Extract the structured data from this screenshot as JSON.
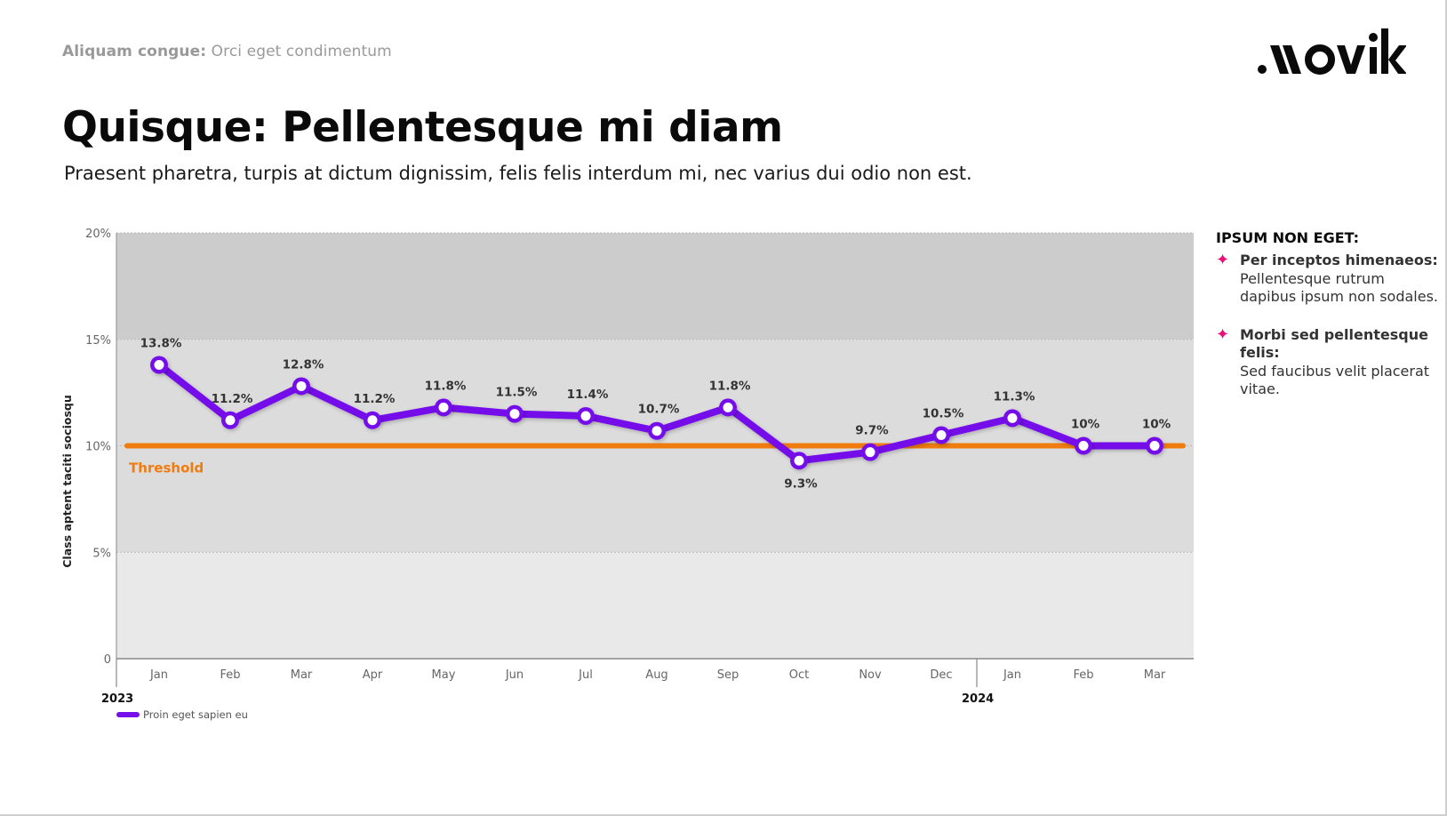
{
  "header": {
    "eyebrow_bold": "Aliquam congue:",
    "eyebrow_rest": " Orci eget condimentum",
    "brand": "movik",
    "title": "Quisque: Pellentesque mi diam",
    "subtitle": "Praesent pharetra, turpis at dictum dignissim, felis felis interdum mi, nec varius dui odio non est."
  },
  "sidebar": {
    "title": "IPSUM NON EGET:",
    "bullet_icon": "four-point-star-icon",
    "items": [
      {
        "bold": "Per inceptos himenaeos:",
        "text": "Pellentesque rutrum dapibus ipsum non sodales."
      },
      {
        "bold": "Morbi sed pellentesque felis:",
        "text": "Sed faucibus velit placerat vitae."
      }
    ]
  },
  "colors": {
    "series": "#7510ea",
    "threshold": "#f07c10",
    "bullet": "#e8107a",
    "band_high": "#cccccc",
    "band_mid": "#dcdcdc",
    "band_low": "#e9e9e9"
  },
  "chart_data": {
    "type": "line",
    "title": "",
    "ylabel": "Class aptent taciti sociosqu",
    "xlabel": "",
    "ylim": [
      0,
      20
    ],
    "yticks": [
      0,
      5,
      10,
      15,
      20
    ],
    "ytick_labels": [
      "0",
      "5%",
      "10%",
      "15%",
      "20%"
    ],
    "grid": true,
    "categories": [
      "Jan",
      "Feb",
      "Mar",
      "Apr",
      "May",
      "Jun",
      "Jul",
      "Aug",
      "Sep",
      "Oct",
      "Nov",
      "Dec",
      "Jan",
      "Feb",
      "Mar"
    ],
    "year_labels": [
      {
        "label": "2023",
        "start_index": 0
      },
      {
        "label": "2024",
        "start_index": 12
      }
    ],
    "series": [
      {
        "name": "Proin eget sapien eu",
        "values": [
          13.8,
          11.2,
          12.8,
          11.2,
          11.8,
          11.5,
          11.4,
          10.7,
          11.8,
          9.3,
          9.7,
          10.5,
          11.3,
          10,
          10
        ],
        "labels": [
          "13.8%",
          "11.2%",
          "12.8%",
          "11.2%",
          "11.8%",
          "11.5%",
          "11.4%",
          "10.7%",
          "11.8%",
          "9.3%",
          "9.7%",
          "10.5%",
          "11.3%",
          "10%",
          "10%"
        ]
      }
    ],
    "reference_line": {
      "name": "Threshold",
      "value": 10
    },
    "background_bands": [
      {
        "from": 15,
        "to": 20
      },
      {
        "from": 5,
        "to": 15
      },
      {
        "from": 0,
        "to": 5
      }
    ],
    "legend": {
      "position": "bottom-left"
    }
  }
}
